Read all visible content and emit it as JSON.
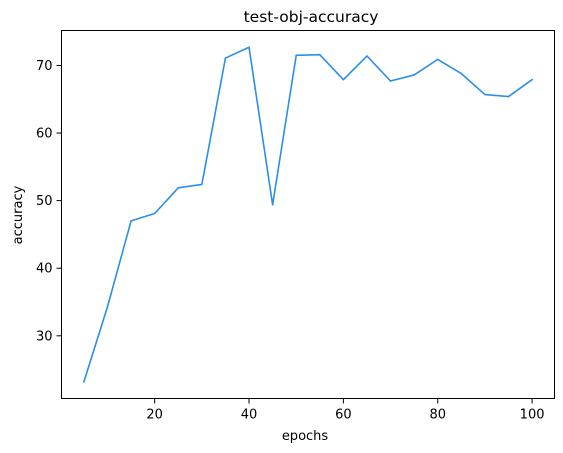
{
  "chart_data": {
    "type": "line",
    "title": "test-obj-accuracy",
    "xlabel": "epochs",
    "ylabel": "accuracy",
    "x": [
      5,
      10,
      15,
      20,
      25,
      30,
      35,
      40,
      45,
      50,
      55,
      60,
      65,
      70,
      75,
      80,
      85,
      90,
      95,
      100
    ],
    "series": [
      {
        "name": "",
        "color": "#2a8fe8",
        "values": [
          23.2,
          34.3,
          47.0,
          48.1,
          51.9,
          52.4,
          71.1,
          72.7,
          49.4,
          71.5,
          71.6,
          67.9,
          71.4,
          67.7,
          68.6,
          70.9,
          68.8,
          65.7,
          65.4,
          67.9
        ]
      }
    ],
    "xlim": [
      0.25,
      104.75
    ],
    "ylim": [
      20.725,
      75.175
    ],
    "xticks": [
      "20",
      "40",
      "60",
      "80",
      "100"
    ],
    "yticks": [
      "30",
      "40",
      "50",
      "60",
      "70"
    ],
    "grid": false,
    "legend": "none"
  }
}
